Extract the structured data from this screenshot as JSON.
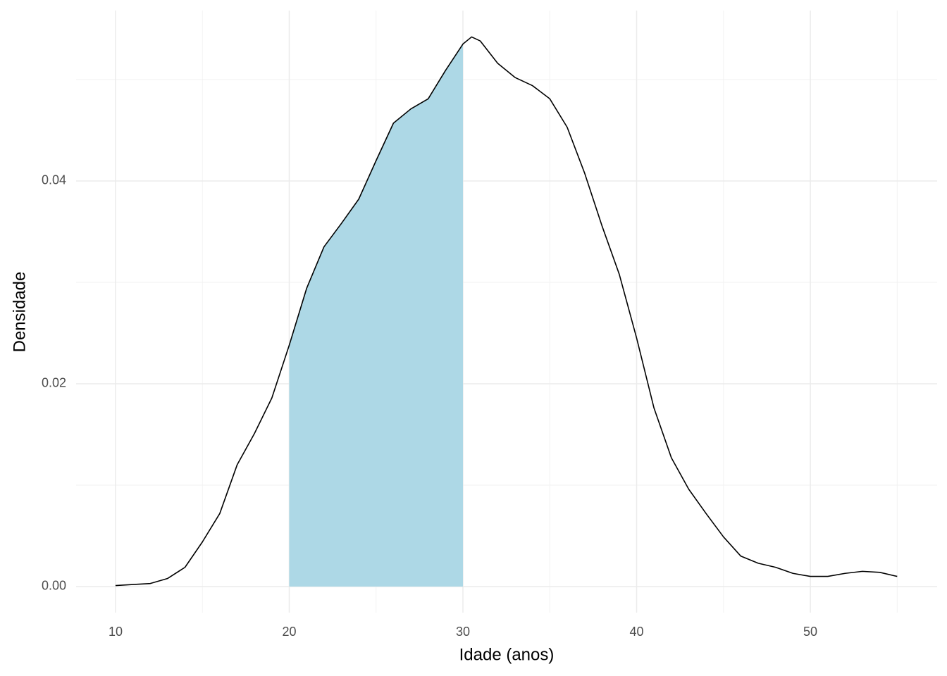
{
  "chart_data": {
    "type": "density",
    "x_label": "Idade (anos)",
    "y_label": "Densidade",
    "x": [
      10,
      11,
      12,
      13,
      14,
      15,
      16,
      17,
      18,
      19,
      20,
      21,
      22,
      23,
      24,
      25,
      26,
      27,
      28,
      29,
      30,
      30.5,
      31,
      32,
      33,
      34,
      35,
      36,
      37,
      38,
      39,
      40,
      41,
      42,
      43,
      44,
      45,
      46,
      47,
      48,
      49,
      50,
      51,
      52,
      53,
      54,
      55
    ],
    "values": [
      0.0001,
      0.0002,
      0.0003,
      0.0008,
      0.0019,
      0.0044,
      0.0072,
      0.012,
      0.0151,
      0.0186,
      0.0238,
      0.0294,
      0.0335,
      0.0358,
      0.0382,
      0.042,
      0.0457,
      0.0471,
      0.0481,
      0.0509,
      0.0535,
      0.0542,
      0.0538,
      0.0516,
      0.0502,
      0.0494,
      0.0481,
      0.0453,
      0.0408,
      0.0356,
      0.0308,
      0.0245,
      0.0176,
      0.0127,
      0.0096,
      0.0072,
      0.0049,
      0.003,
      0.0023,
      0.0019,
      0.0013,
      0.001,
      0.001,
      0.0013,
      0.0015,
      0.0014,
      0.001
    ],
    "color": "#000000",
    "highlight": {
      "from": 20,
      "to": 30,
      "color": "#add8e6"
    },
    "xlim": [
      7.73,
      57.3
    ],
    "ylim": [
      -0.00257,
      0.0568
    ],
    "xticks": [
      10,
      20,
      30,
      40,
      50
    ],
    "yticks": [
      {
        "value": 0,
        "label": "0.00"
      },
      {
        "value": 0.02,
        "label": "0.02"
      },
      {
        "value": 0.04,
        "label": "0.04"
      }
    ],
    "minor_xticks": [
      15,
      25,
      35,
      45,
      55
    ],
    "minor_yticks": [
      0.01,
      0.03,
      0.05
    ],
    "grid": true
  }
}
